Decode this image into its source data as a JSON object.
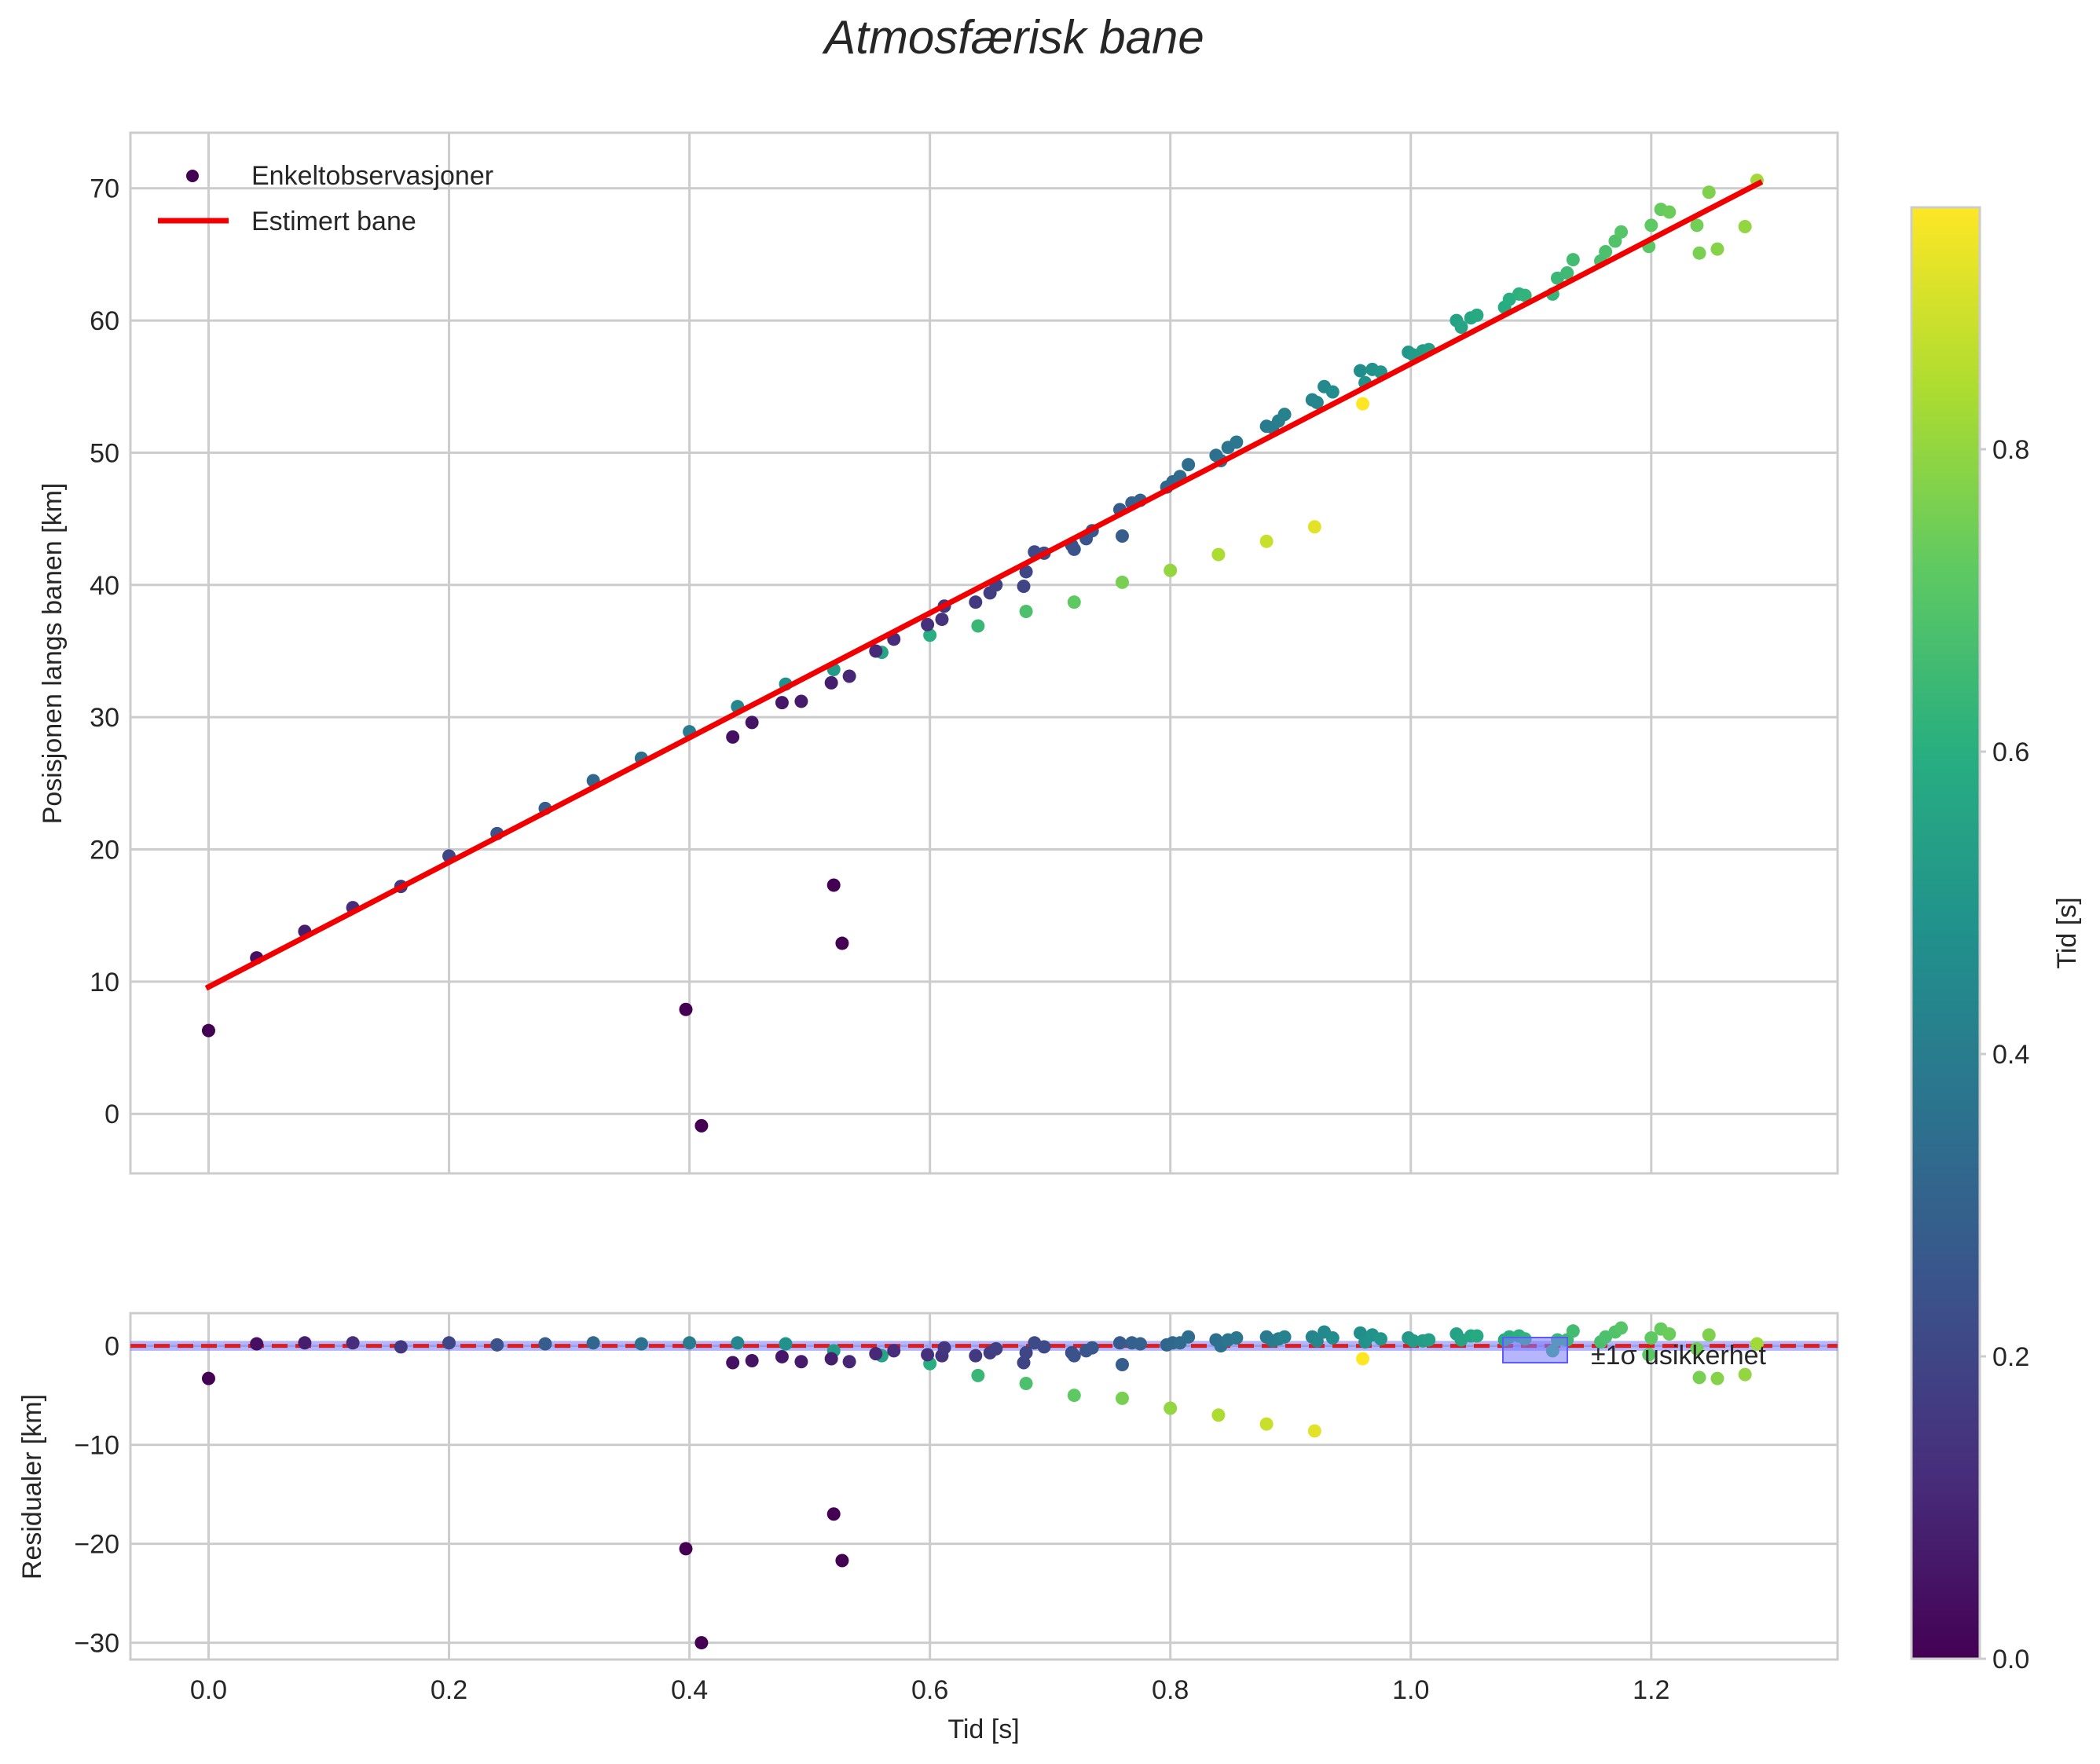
{
  "title": "Atmosfærisk bane",
  "colors": {
    "fit_line": "#f00000",
    "zero_line": "#dc1e1e",
    "band_fill": "#7a7aff",
    "grid": "#cccccc",
    "spine": "#cccccc",
    "text": "#262626"
  },
  "chart_data": [
    {
      "name": "top-panel",
      "type": "scatter",
      "xlabel": "",
      "ylabel": "Posisjonen langs banen [km]",
      "xlim": [
        -0.065,
        1.355
      ],
      "ylim": [
        -4.5,
        74.2
      ],
      "xticks": [
        0.0,
        0.2,
        0.4,
        0.6,
        0.8,
        1.0,
        1.2
      ],
      "yticks": [
        0,
        10,
        20,
        30,
        40,
        50,
        60,
        70
      ],
      "ytick_labels": [
        "0",
        "10",
        "20",
        "30",
        "40",
        "50",
        "60",
        "70"
      ],
      "grid": true,
      "legend": {
        "position": "top-left",
        "entries": [
          "Enkeltobservasjoner",
          "Estimert bane"
        ]
      },
      "fit_line": {
        "name": "Estimert bane",
        "x": [
          0.0,
          1.29
        ],
        "y": [
          9.6,
          70.4
        ]
      }
    },
    {
      "name": "residual-panel",
      "type": "scatter",
      "xlabel": "Tid [s]",
      "ylabel": "Residualer [km]",
      "xlim": [
        -0.065,
        1.355
      ],
      "ylim": [
        -31.7,
        3.3
      ],
      "xticks": [
        0.0,
        0.2,
        0.4,
        0.6,
        0.8,
        1.0,
        1.2
      ],
      "xtick_labels": [
        "0.0",
        "0.2",
        "0.4",
        "0.6",
        "0.8",
        "1.0",
        "1.2"
      ],
      "yticks": [
        0,
        -10,
        -20,
        -30
      ],
      "ytick_labels": [
        "0",
        "−10",
        "−20",
        "−30"
      ],
      "grid": true,
      "zero_line": 0,
      "uncertainty_band": {
        "name": "±1σ usikkerhet",
        "lower": -0.5,
        "upper": 0.5
      },
      "legend": {
        "position": "right",
        "entries": [
          "±1σ usikkerhet"
        ]
      }
    }
  ],
  "colorbar": {
    "label": "Tid [s]",
    "colormap": "viridis",
    "range": [
      0.0,
      0.96
    ],
    "ticks": [
      0.0,
      0.2,
      0.4,
      0.6,
      0.8
    ],
    "tick_labels": [
      "0.0",
      "0.2",
      "0.4",
      "0.6",
      "0.8"
    ]
  },
  "observations": {
    "columns": [
      "time_s",
      "position_km",
      "residual_km",
      "colour_value_s"
    ],
    "rows": [
      [
        0.0,
        6.3,
        -3.3,
        0.0
      ],
      [
        0.04,
        11.8,
        0.2,
        0.04
      ],
      [
        0.08,
        13.8,
        0.3,
        0.08
      ],
      [
        0.12,
        15.6,
        0.3,
        0.12
      ],
      [
        0.16,
        17.2,
        -0.1,
        0.16
      ],
      [
        0.2,
        19.5,
        0.3,
        0.2
      ],
      [
        0.24,
        21.2,
        0.1,
        0.24
      ],
      [
        0.28,
        23.1,
        0.2,
        0.28
      ],
      [
        0.32,
        25.2,
        0.3,
        0.32
      ],
      [
        0.36,
        26.9,
        0.2,
        0.36
      ],
      [
        0.4,
        28.9,
        0.3,
        0.4
      ],
      [
        0.44,
        30.8,
        0.3,
        0.44
      ],
      [
        0.48,
        32.5,
        0.2,
        0.48
      ],
      [
        0.52,
        33.6,
        -0.5,
        0.52
      ],
      [
        0.56,
        34.9,
        -1.0,
        0.56
      ],
      [
        0.6,
        36.2,
        -1.8,
        0.6
      ],
      [
        0.64,
        36.9,
        -3.0,
        0.64
      ],
      [
        0.68,
        38.0,
        -3.8,
        0.68
      ],
      [
        0.72,
        38.7,
        -5.0,
        0.72
      ],
      [
        0.76,
        40.2,
        -5.3,
        0.76
      ],
      [
        0.8,
        41.1,
        -6.3,
        0.8
      ],
      [
        0.84,
        42.3,
        -7.0,
        0.84
      ],
      [
        0.88,
        43.3,
        -7.9,
        0.88
      ],
      [
        0.92,
        44.4,
        -8.6,
        0.92
      ],
      [
        0.96,
        53.7,
        -1.3,
        0.96
      ],
      [
        0.397,
        7.9,
        -20.5,
        0.0
      ],
      [
        0.41,
        -0.9,
        -30.0,
        0.0
      ],
      [
        0.52,
        17.3,
        -17.0,
        0.0
      ],
      [
        0.527,
        12.9,
        -21.7,
        0.0
      ],
      [
        0.436,
        28.5,
        -1.7,
        0.04
      ],
      [
        0.452,
        29.6,
        -1.5,
        0.05
      ],
      [
        0.477,
        31.1,
        -1.1,
        0.06
      ],
      [
        0.493,
        31.2,
        -1.6,
        0.07
      ],
      [
        0.518,
        32.6,
        -1.3,
        0.08
      ],
      [
        0.533,
        33.1,
        -1.6,
        0.1
      ],
      [
        0.555,
        35.0,
        -0.8,
        0.11
      ],
      [
        0.57,
        35.9,
        -0.5,
        0.12
      ],
      [
        0.598,
        37.0,
        -0.9,
        0.13
      ],
      [
        0.61,
        37.4,
        -1.0,
        0.14
      ],
      [
        0.612,
        38.4,
        -0.2,
        0.15
      ],
      [
        0.638,
        38.7,
        -1.0,
        0.16
      ],
      [
        0.65,
        39.4,
        -0.7,
        0.17
      ],
      [
        0.655,
        40.0,
        -0.3,
        0.18
      ],
      [
        0.678,
        39.9,
        -1.7,
        0.19
      ],
      [
        0.68,
        41.0,
        -0.7,
        0.2
      ],
      [
        0.687,
        42.5,
        0.3,
        0.21
      ],
      [
        0.695,
        42.4,
        -0.1,
        0.22
      ],
      [
        0.718,
        43.0,
        -0.7,
        0.23
      ],
      [
        0.72,
        42.7,
        -1.0,
        0.24
      ],
      [
        0.73,
        43.5,
        -0.5,
        0.25
      ],
      [
        0.735,
        44.1,
        -0.2,
        0.26
      ],
      [
        0.758,
        45.7,
        0.3,
        0.27
      ],
      [
        0.76,
        43.7,
        -1.9,
        0.28
      ],
      [
        0.768,
        46.2,
        0.3,
        0.29
      ],
      [
        0.775,
        46.4,
        0.2,
        0.3
      ],
      [
        0.797,
        47.4,
        0.1,
        0.31
      ],
      [
        0.802,
        47.8,
        0.3,
        0.32
      ],
      [
        0.808,
        48.2,
        0.3,
        0.33
      ],
      [
        0.815,
        49.1,
        0.9,
        0.34
      ],
      [
        0.838,
        49.8,
        0.6,
        0.35
      ],
      [
        0.842,
        49.4,
        0.0,
        0.36
      ],
      [
        0.848,
        50.4,
        0.6,
        0.37
      ],
      [
        0.855,
        50.8,
        0.8,
        0.38
      ],
      [
        0.88,
        52.0,
        0.9,
        0.39
      ],
      [
        0.885,
        51.9,
        0.5,
        0.4
      ],
      [
        0.89,
        52.4,
        0.7,
        0.41
      ],
      [
        0.895,
        52.9,
        0.9,
        0.42
      ],
      [
        0.918,
        54.0,
        0.9,
        0.43
      ],
      [
        0.922,
        53.8,
        0.5,
        0.44
      ],
      [
        0.928,
        55.0,
        1.4,
        0.45
      ],
      [
        0.935,
        54.6,
        0.8,
        0.46
      ],
      [
        0.958,
        56.2,
        1.3,
        0.47
      ],
      [
        0.962,
        55.3,
        0.4,
        0.48
      ],
      [
        0.968,
        56.3,
        1.1,
        0.49
      ],
      [
        0.975,
        56.1,
        0.7,
        0.5
      ],
      [
        0.998,
        57.6,
        0.8,
        0.51
      ],
      [
        1.002,
        57.4,
        0.5,
        0.52
      ],
      [
        1.01,
        57.7,
        0.5,
        0.53
      ],
      [
        1.015,
        57.8,
        0.6,
        0.54
      ],
      [
        1.038,
        60.0,
        1.2,
        0.55
      ],
      [
        1.042,
        59.5,
        0.6,
        0.56
      ],
      [
        1.05,
        60.2,
        1.0,
        0.57
      ],
      [
        1.055,
        60.4,
        1.0,
        0.58
      ],
      [
        1.078,
        61.0,
        0.6,
        0.59
      ],
      [
        1.082,
        61.6,
        0.9,
        0.6
      ],
      [
        1.09,
        62.0,
        1.0,
        0.61
      ],
      [
        1.095,
        61.9,
        0.7,
        0.62
      ],
      [
        1.118,
        62.0,
        -0.5,
        0.63
      ],
      [
        1.122,
        63.2,
        0.6,
        0.64
      ],
      [
        1.13,
        63.6,
        0.6,
        0.65
      ],
      [
        1.135,
        64.6,
        1.5,
        0.66
      ],
      [
        1.158,
        64.5,
        0.4,
        0.67
      ],
      [
        1.162,
        65.2,
        0.9,
        0.68
      ],
      [
        1.17,
        66.0,
        1.4,
        0.69
      ],
      [
        1.175,
        66.7,
        1.8,
        0.7
      ],
      [
        1.198,
        65.6,
        -0.9,
        0.71
      ],
      [
        1.2,
        67.2,
        0.8,
        0.72
      ],
      [
        1.208,
        68.4,
        1.7,
        0.73
      ],
      [
        1.215,
        68.2,
        1.2,
        0.74
      ],
      [
        1.238,
        67.2,
        -0.3,
        0.75
      ],
      [
        1.24,
        65.1,
        -3.2,
        0.76
      ],
      [
        1.248,
        69.7,
        1.1,
        0.77
      ],
      [
        1.255,
        65.4,
        -3.3,
        0.78
      ],
      [
        1.278,
        67.1,
        -2.9,
        0.8
      ],
      [
        1.288,
        70.6,
        0.2,
        0.82
      ]
    ]
  }
}
